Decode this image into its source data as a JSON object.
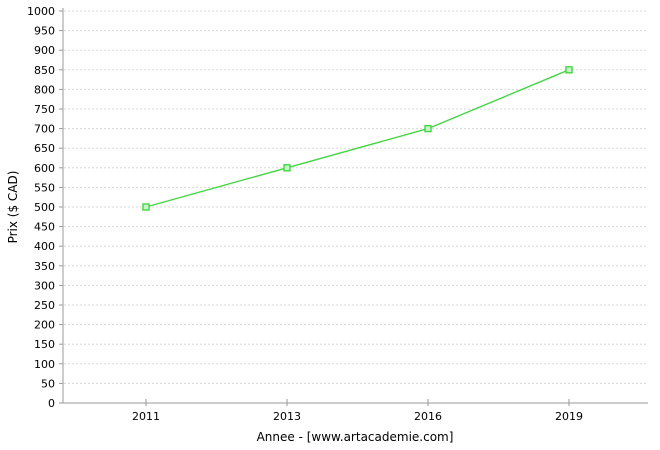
{
  "chart_data": {
    "type": "line",
    "title": "",
    "categories": [
      "2011",
      "2013",
      "2016",
      "2019"
    ],
    "series": [
      {
        "name": "Prix",
        "values": [
          500,
          600,
          700,
          850
        ],
        "color": "#44d544",
        "marker": "square-hollow"
      }
    ],
    "xlabel": "Annee - [www.artacademie.com]",
    "ylabel": "Prix ($ CAD)",
    "ylim": [
      0,
      1000
    ],
    "ytick_step": 50,
    "y_ticks": [
      0,
      50,
      100,
      150,
      200,
      250,
      300,
      350,
      400,
      450,
      500,
      550,
      600,
      650,
      700,
      750,
      800,
      850,
      900,
      950,
      1000
    ],
    "grid": "horizontal-dotted",
    "legend": "none",
    "colors": {
      "line": "#44d544",
      "marker_fill": "#c8f6c8",
      "axis": "#9a9a9a",
      "grid": "#d8d8d8",
      "text": "#000000",
      "background": "#ffffff"
    }
  }
}
